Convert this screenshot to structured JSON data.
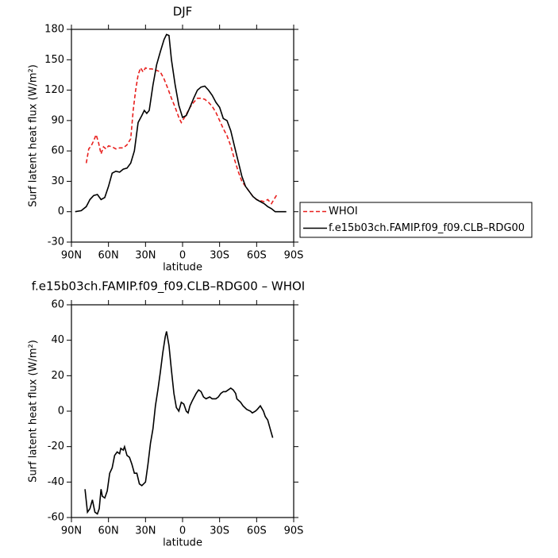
{
  "chart_data": [
    {
      "type": "line",
      "title": "DJF",
      "xlabel": "latitude",
      "ylabel": "Surf latent heat flux (W/m²)",
      "xlim": [
        90,
        -90
      ],
      "xticks": [
        {
          "value": 90,
          "label": "90N"
        },
        {
          "value": 60,
          "label": "60N"
        },
        {
          "value": 30,
          "label": "30N"
        },
        0,
        {
          "value": -30,
          "label": "30S"
        },
        {
          "value": -60,
          "label": "60S"
        },
        {
          "value": -90,
          "label": "90S"
        }
      ],
      "ylim": [
        -30,
        180
      ],
      "yticks": [
        -30,
        0,
        30,
        60,
        90,
        120,
        150,
        180
      ],
      "legend": "right",
      "series": [
        {
          "name": "WHOI",
          "color": "#e8201e",
          "dashed": true,
          "x": [
            78,
            76,
            74,
            72,
            70,
            68,
            66,
            64,
            62,
            60,
            57,
            54,
            51,
            48,
            45,
            42,
            40,
            38,
            36,
            34,
            32,
            30,
            28,
            25,
            22,
            18,
            15,
            12,
            9,
            6,
            3,
            1,
            0,
            -3,
            -6,
            -9,
            -12,
            -15,
            -18,
            -21,
            -24,
            -27,
            -30,
            -33,
            -36,
            -39,
            -42,
            -45,
            -48,
            -51,
            -54,
            -57,
            -60,
            -63,
            -66,
            -69,
            -72,
            -74,
            -77
          ],
          "values": [
            48,
            62,
            65,
            70,
            76,
            68,
            57,
            64,
            62,
            65,
            64,
            62,
            63,
            63,
            66,
            72,
            100,
            120,
            135,
            142,
            138,
            142,
            141,
            141,
            140,
            138,
            131,
            122,
            112,
            103,
            93,
            88,
            90,
            96,
            103,
            108,
            112,
            112,
            111,
            108,
            104,
            98,
            90,
            82,
            75,
            65,
            52,
            40,
            30,
            25,
            20,
            15,
            12,
            11,
            10,
            12,
            8,
            12,
            18
          ]
        },
        {
          "name": "f.e15b03ch.FAMIP.f09_f09.CLB–RDG00",
          "color": "#000000",
          "dashed": false,
          "x": [
            87,
            82,
            78,
            75,
            72,
            69,
            66,
            63,
            60,
            57,
            54,
            51,
            48,
            45,
            42,
            39,
            36,
            33,
            31,
            29,
            27,
            24,
            21,
            18,
            15,
            13,
            11,
            9,
            6,
            3,
            0,
            -3,
            -6,
            -9,
            -12,
            -15,
            -18,
            -21,
            -24,
            -27,
            -30,
            -33,
            -36,
            -39,
            -42,
            -45,
            -48,
            -51,
            -54,
            -57,
            -60,
            -63,
            -66,
            -69,
            -72,
            -75,
            -78,
            -84
          ],
          "values": [
            0,
            1,
            5,
            12,
            16,
            17,
            12,
            14,
            25,
            38,
            40,
            39,
            42,
            43,
            48,
            60,
            88,
            95,
            100,
            97,
            100,
            125,
            145,
            158,
            170,
            175,
            174,
            150,
            125,
            105,
            93,
            95,
            103,
            112,
            120,
            123,
            124,
            120,
            115,
            108,
            103,
            92,
            90,
            80,
            65,
            50,
            35,
            25,
            20,
            15,
            12,
            10,
            8,
            5,
            3,
            0,
            0,
            0
          ]
        }
      ]
    },
    {
      "type": "line",
      "title": "f.e15b03ch.FAMIP.f09_f09.CLB–RDG00 – WHOI",
      "xlabel": "latitude",
      "ylabel": "Surf latent heat flux (W/m²)",
      "xlim": [
        90,
        -90
      ],
      "xticks": [
        {
          "value": 90,
          "label": "90N"
        },
        {
          "value": 60,
          "label": "60N"
        },
        {
          "value": 30,
          "label": "30N"
        },
        0,
        {
          "value": -30,
          "label": "30S"
        },
        {
          "value": -60,
          "label": "60S"
        },
        {
          "value": -90,
          "label": "90S"
        }
      ],
      "ylim": [
        -60,
        60
      ],
      "yticks": [
        -60,
        -40,
        -20,
        0,
        20,
        40,
        60
      ],
      "series": [
        {
          "color": "#000000",
          "dashed": false,
          "x": [
            79,
            77,
            75,
            73,
            71,
            69,
            67.5,
            66,
            65,
            63,
            61,
            59,
            57,
            55,
            53,
            51,
            50,
            48,
            47,
            45,
            43,
            41,
            39,
            37,
            35,
            33,
            31.5,
            30,
            28,
            26,
            24,
            22,
            20,
            18,
            16,
            14,
            13,
            11,
            9,
            7,
            5,
            3,
            1,
            -1,
            -3,
            -4.5,
            -6,
            -8,
            -11,
            -13,
            -15,
            -17,
            -19,
            -22,
            -24,
            -27,
            -29,
            -31,
            -33,
            -35,
            -37,
            -39,
            -41,
            -43,
            -44,
            -47,
            -49,
            -52,
            -55,
            -56.5,
            -59,
            -60.5,
            -63,
            -65.5,
            -67,
            -69,
            -71,
            -73
          ],
          "values": [
            -44,
            -57,
            -55,
            -50,
            -57,
            -58,
            -55,
            -44,
            -48,
            -49,
            -45,
            -35,
            -32,
            -25,
            -23,
            -24,
            -21,
            -22,
            -20,
            -25,
            -26,
            -30,
            -35,
            -35,
            -41,
            -42,
            -41,
            -40,
            -30,
            -18,
            -10,
            3,
            12,
            22,
            33,
            42,
            45,
            37,
            23,
            10,
            2,
            0,
            5,
            4,
            0,
            -1,
            3,
            6,
            10,
            12,
            11,
            8,
            7,
            8,
            7,
            7,
            8,
            10,
            11,
            11,
            12,
            13,
            12,
            10,
            7,
            5,
            3,
            1,
            0,
            -1,
            0,
            1,
            3,
            0,
            -3,
            -5,
            -10,
            -15
          ]
        }
      ]
    }
  ]
}
